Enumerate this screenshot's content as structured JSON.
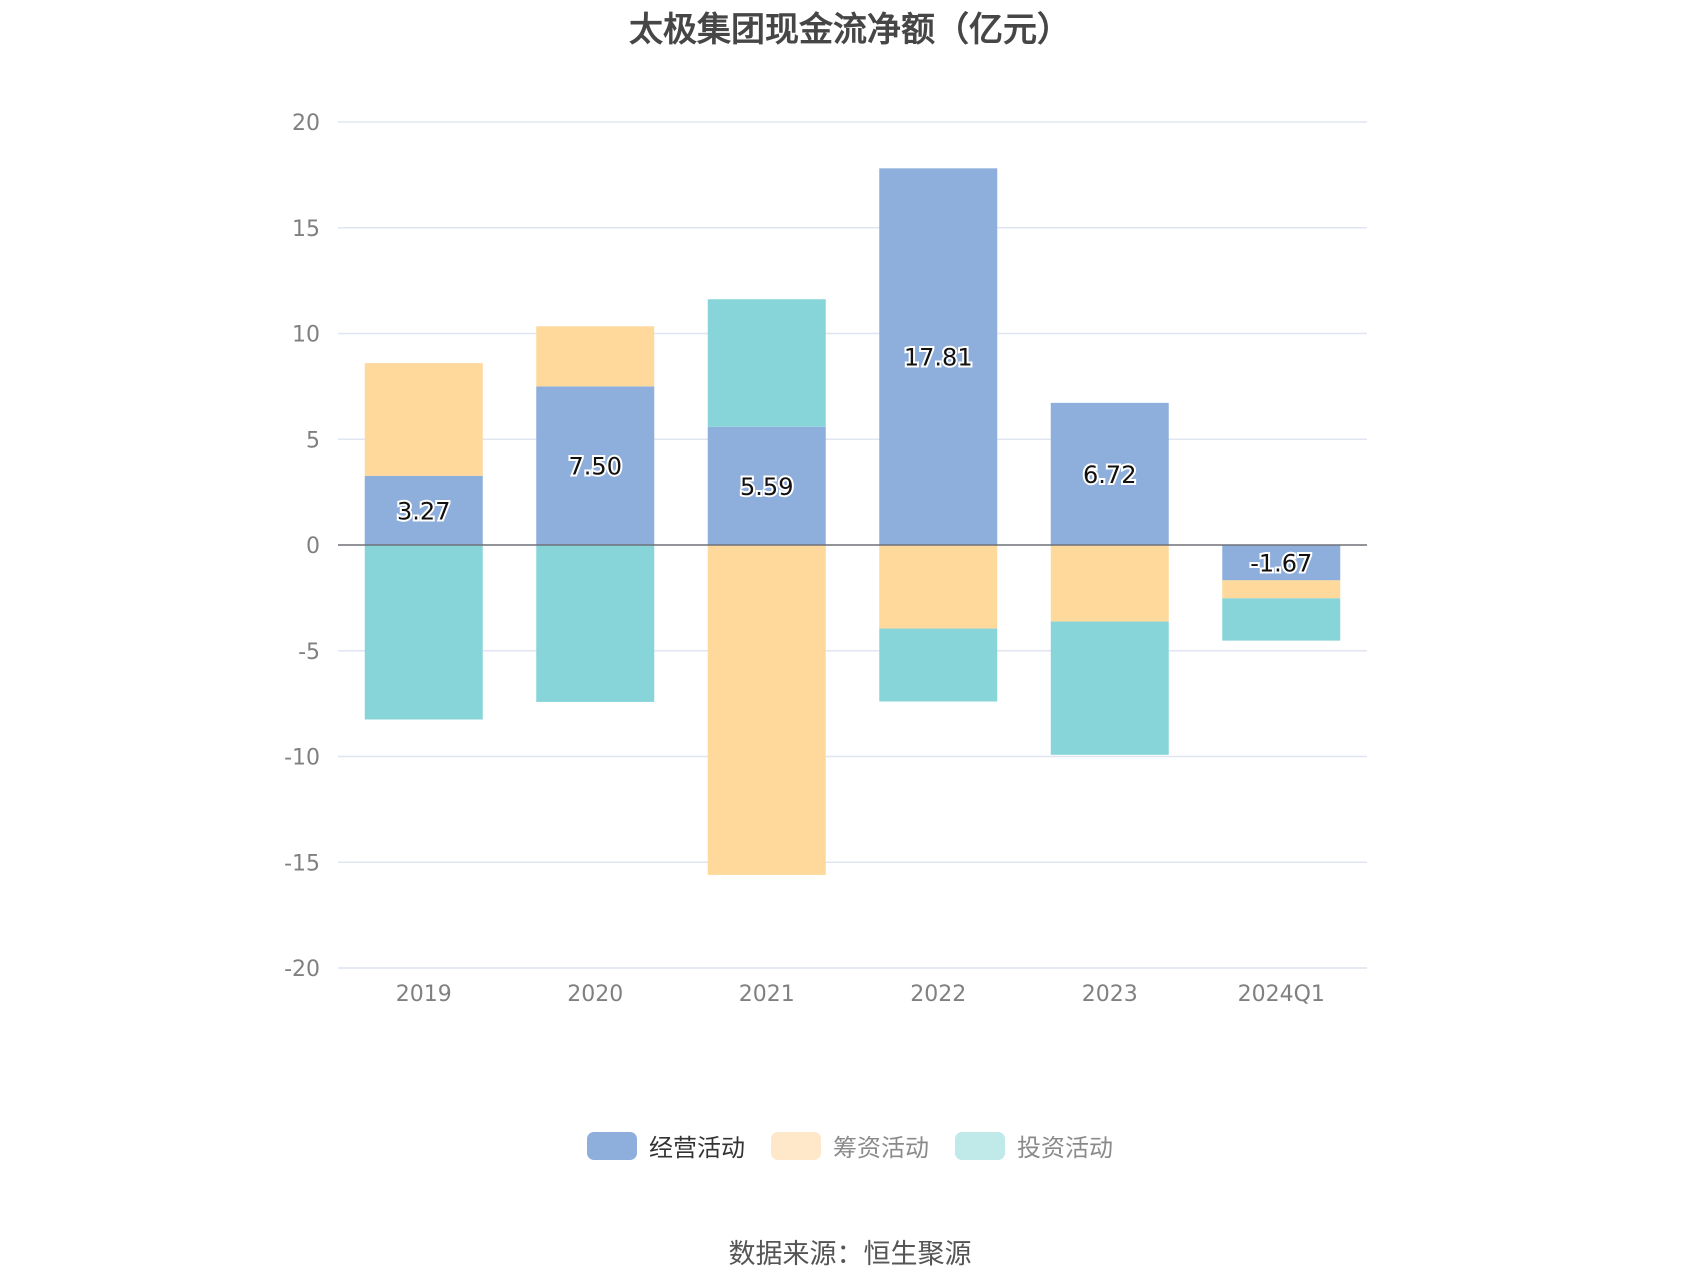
{
  "chart_data": {
    "type": "bar",
    "stacked": true,
    "title": "太极集团现金流净额（亿元）",
    "categories": [
      "2019",
      "2020",
      "2021",
      "2022",
      "2023",
      "2024Q1"
    ],
    "ylim": [
      -20,
      20
    ],
    "yticks": [
      20,
      15,
      10,
      5,
      0,
      -5,
      -10,
      -15,
      -20
    ],
    "grid": true,
    "legend_position": "bottom",
    "series": [
      {
        "name": "经营活动",
        "color": "#8eaedb",
        "values": [
          3.27,
          7.5,
          5.59,
          17.81,
          6.72,
          -1.67
        ],
        "labels_shown": true
      },
      {
        "name": "筹资活动",
        "color": "#fed99b",
        "values": [
          5.33,
          2.84,
          -15.6,
          -3.95,
          -3.62,
          -0.85
        ],
        "labels_shown": false
      },
      {
        "name": "投资活动",
        "color": "#88d5d9",
        "values": [
          -8.25,
          -7.42,
          6.03,
          -3.45,
          -6.3,
          -2.0
        ],
        "labels_shown": false
      }
    ]
  },
  "legend": {
    "items": [
      {
        "label": "经营活动",
        "color": "#8eaedb"
      },
      {
        "label": "筹资活动",
        "color": "#fee8c9"
      },
      {
        "label": "投资活动",
        "color": "#c0e9ea"
      }
    ]
  },
  "source": "数据来源：恒生聚源"
}
